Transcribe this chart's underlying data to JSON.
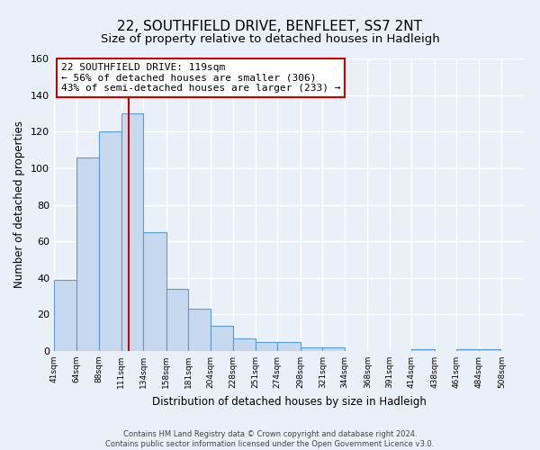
{
  "title": "22, SOUTHFIELD DRIVE, BENFLEET, SS7 2NT",
  "subtitle": "Size of property relative to detached houses in Hadleigh",
  "xlabel": "Distribution of detached houses by size in Hadleigh",
  "ylabel": "Number of detached properties",
  "footer_line1": "Contains HM Land Registry data © Crown copyright and database right 2024.",
  "footer_line2": "Contains public sector information licensed under the Open Government Licence v3.0.",
  "bin_edges": [
    41,
    64,
    88,
    111,
    134,
    158,
    181,
    204,
    228,
    251,
    274,
    298,
    321,
    344,
    368,
    391,
    414,
    438,
    461,
    484,
    508
  ],
  "bar_heights": [
    39,
    106,
    120,
    130,
    65,
    34,
    23,
    14,
    7,
    5,
    5,
    2,
    2,
    0,
    0,
    0,
    1,
    0,
    1,
    1
  ],
  "bar_color": "#c7d9ee",
  "bar_edgecolor": "#5b9bd5",
  "background_color": "#eaf0f8",
  "grid_color": "#ffffff",
  "property_size": 119,
  "vline_color": "#cc0000",
  "annotation_line1": "22 SOUTHFIELD DRIVE: 119sqm",
  "annotation_line2": "← 56% of detached houses are smaller (306)",
  "annotation_line3": "43% of semi-detached houses are larger (233) →",
  "annotation_box_color": "#ffffff",
  "annotation_border_color": "#cc0000",
  "ylim": [
    0,
    160
  ],
  "yticks": [
    0,
    20,
    40,
    60,
    80,
    100,
    120,
    140,
    160
  ],
  "title_fontsize": 11,
  "subtitle_fontsize": 9.5,
  "tick_labels": [
    "41sqm",
    "64sqm",
    "88sqm",
    "111sqm",
    "134sqm",
    "158sqm",
    "181sqm",
    "204sqm",
    "228sqm",
    "251sqm",
    "274sqm",
    "298sqm",
    "321sqm",
    "344sqm",
    "368sqm",
    "391sqm",
    "414sqm",
    "438sqm",
    "461sqm",
    "484sqm",
    "508sqm"
  ]
}
